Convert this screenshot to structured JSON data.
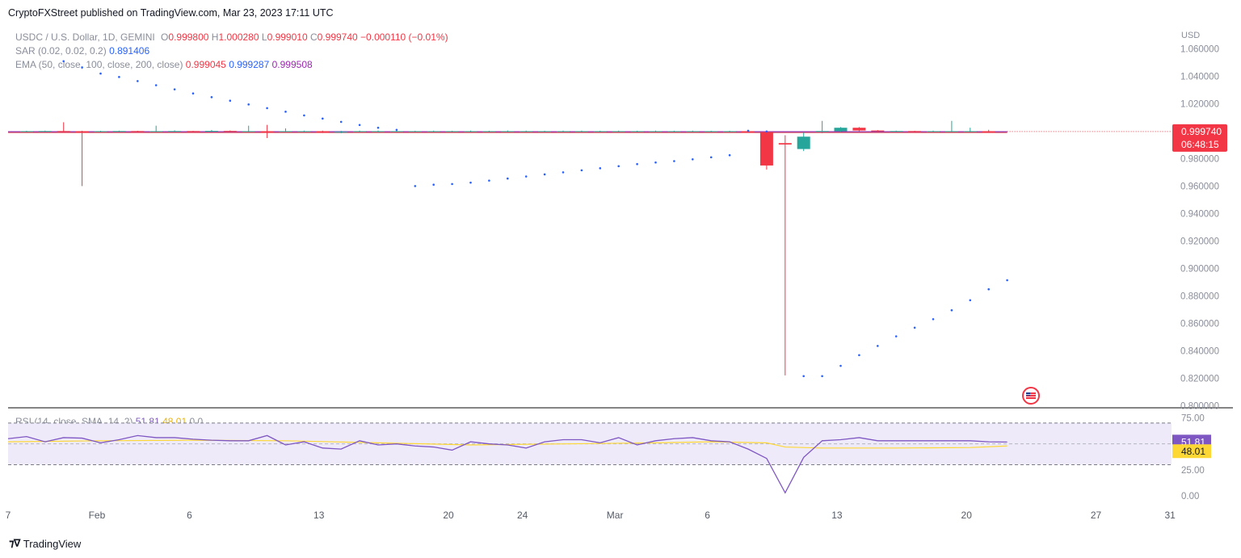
{
  "header": {
    "publish_line": "CryptoFXStreet published on TradingView.com, Mar 23, 2023 17:11 UTC"
  },
  "legend": {
    "symbol": "USDC / U.S. Dollar, 1D, GEMINI",
    "o_label": "O",
    "o_value": "0.999800",
    "h_label": "H",
    "h_value": "1.000280",
    "l_label": "L",
    "l_value": "0.999010",
    "c_label": "C",
    "c_value": "0.999740",
    "change": "−0.000110 (−0.01%)",
    "sar_label": "SAR (0.02, 0.02, 0.2)",
    "sar_value": "0.891406",
    "ema_label": "EMA (50, close, 100, close, 200, close)",
    "ema_values": [
      "0.999045",
      "0.999287",
      "0.999508"
    ],
    "rsi_label": "RSI (14, close, SMA, 14, 2)",
    "rsi_value": "51.81",
    "rsi_sma_value": "48.01",
    "rsi_extra": [
      "0",
      "0"
    ]
  },
  "colors": {
    "up": "#26a69a",
    "down": "#f23645",
    "sar": "#2962ff",
    "ema50": "#f23645",
    "ema100": "#2962ff",
    "ema200": "#9c27b0",
    "rsi": "#7e57c2",
    "rsi_sma": "#fdd835",
    "rsi_band": "#efeafa"
  },
  "icons": {
    "event": "us-flag-event-icon",
    "brand": "tradingview-logo-icon"
  },
  "brand": {
    "name": "TradingView"
  },
  "chart_data": {
    "type": "candlestick",
    "price_axis": {
      "unit": "USD",
      "ylim": [
        0.8,
        1.06
      ],
      "ticks": [
        "1.060000",
        "1.040000",
        "1.020000",
        "1.000000",
        "0.980000",
        "0.960000",
        "0.940000",
        "0.920000",
        "0.900000",
        "0.880000",
        "0.860000",
        "0.840000",
        "0.820000",
        "0.800000"
      ],
      "last_price": "0.999740",
      "countdown": "06:48:15"
    },
    "x_ticks": [
      {
        "label": "7",
        "day": 0
      },
      {
        "label": "Feb",
        "day": 4.8
      },
      {
        "label": "6",
        "day": 9.8
      },
      {
        "label": "13",
        "day": 16.8
      },
      {
        "label": "20",
        "day": 23.8
      },
      {
        "label": "24",
        "day": 27.8
      },
      {
        "label": "Mar",
        "day": 32.8
      },
      {
        "label": "6",
        "day": 37.8
      },
      {
        "label": "13",
        "day": 44.8
      },
      {
        "label": "20",
        "day": 51.8
      },
      {
        "label": "27",
        "day": 58.8
      },
      {
        "label": "31",
        "day": 62.8
      }
    ],
    "candles": [
      {
        "day": 1,
        "o": 1.0,
        "h": 1.0003,
        "l": 0.9997,
        "c": 1.0
      },
      {
        "day": 2,
        "o": 1.0,
        "h": 1.0004,
        "l": 0.9996,
        "c": 1.0001
      },
      {
        "day": 3,
        "o": 1.0001,
        "h": 1.0065,
        "l": 0.9995,
        "c": 1.0
      },
      {
        "day": 4,
        "o": 1.0,
        "h": 1.0003,
        "l": 0.96,
        "c": 0.9999
      },
      {
        "day": 5,
        "o": 0.9999,
        "h": 1.0003,
        "l": 0.9995,
        "c": 1.0
      },
      {
        "day": 6,
        "o": 1.0,
        "h": 1.0004,
        "l": 0.9996,
        "c": 1.0001
      },
      {
        "day": 7,
        "o": 1.0001,
        "h": 1.0003,
        "l": 0.9996,
        "c": 1.0
      },
      {
        "day": 8,
        "o": 1.0,
        "h": 1.004,
        "l": 0.9996,
        "c": 1.0
      },
      {
        "day": 9,
        "o": 1.0,
        "h": 1.0006,
        "l": 0.9995,
        "c": 1.0001
      },
      {
        "day": 10,
        "o": 1.0001,
        "h": 1.0003,
        "l": 0.9996,
        "c": 1.0
      },
      {
        "day": 11,
        "o": 1.0,
        "h": 1.0009,
        "l": 0.9996,
        "c": 1.0002
      },
      {
        "day": 12,
        "o": 1.0002,
        "h": 1.0005,
        "l": 0.9997,
        "c": 0.9999
      },
      {
        "day": 13,
        "o": 0.9999,
        "h": 1.004,
        "l": 0.9996,
        "c": 1.0
      },
      {
        "day": 14,
        "o": 1.0,
        "h": 1.0046,
        "l": 0.995,
        "c": 0.9999
      },
      {
        "day": 15,
        "o": 0.9999,
        "h": 1.002,
        "l": 0.9994,
        "c": 1.0
      },
      {
        "day": 16,
        "o": 1.0,
        "h": 1.0004,
        "l": 0.9996,
        "c": 1.0
      },
      {
        "day": 17,
        "o": 1.0,
        "h": 1.0004,
        "l": 0.9987,
        "c": 0.9995
      },
      {
        "day": 18,
        "o": 0.9995,
        "h": 1.0003,
        "l": 0.9985,
        "c": 0.9996
      },
      {
        "day": 19,
        "o": 0.9996,
        "h": 1.0004,
        "l": 0.9995,
        "c": 1.0
      },
      {
        "day": 20,
        "o": 1.0,
        "h": 1.0005,
        "l": 0.999,
        "c": 1.0
      },
      {
        "day": 21,
        "o": 1.0,
        "h": 1.0004,
        "l": 0.9996,
        "c": 1.0
      },
      {
        "day": 22,
        "o": 1.0,
        "h": 1.0003,
        "l": 0.9996,
        "c": 1.0
      },
      {
        "day": 23,
        "o": 1.0,
        "h": 1.0004,
        "l": 0.9996,
        "c": 1.0
      },
      {
        "day": 24,
        "o": 1.0,
        "h": 1.0003,
        "l": 0.9997,
        "c": 1.0
      },
      {
        "day": 25,
        "o": 1.0,
        "h": 1.0004,
        "l": 0.9996,
        "c": 1.0
      },
      {
        "day": 26,
        "o": 1.0,
        "h": 1.0003,
        "l": 0.9996,
        "c": 1.0
      },
      {
        "day": 27,
        "o": 1.0,
        "h": 1.0005,
        "l": 0.9995,
        "c": 1.0
      },
      {
        "day": 28,
        "o": 1.0,
        "h": 1.0004,
        "l": 0.9996,
        "c": 1.0
      },
      {
        "day": 29,
        "o": 1.0,
        "h": 1.0003,
        "l": 0.9997,
        "c": 1.0
      },
      {
        "day": 30,
        "o": 1.0,
        "h": 1.0004,
        "l": 0.9996,
        "c": 1.0
      },
      {
        "day": 31,
        "o": 1.0,
        "h": 1.0004,
        "l": 0.9996,
        "c": 1.0
      },
      {
        "day": 32,
        "o": 1.0,
        "h": 1.0003,
        "l": 0.9996,
        "c": 1.0
      },
      {
        "day": 33,
        "o": 1.0,
        "h": 1.0004,
        "l": 0.9996,
        "c": 1.0
      },
      {
        "day": 34,
        "o": 1.0,
        "h": 1.0003,
        "l": 0.9997,
        "c": 1.0
      },
      {
        "day": 35,
        "o": 1.0,
        "h": 1.0004,
        "l": 0.9996,
        "c": 1.0
      },
      {
        "day": 36,
        "o": 1.0,
        "h": 1.0003,
        "l": 0.9996,
        "c": 1.0
      },
      {
        "day": 37,
        "o": 1.0,
        "h": 1.0004,
        "l": 0.9996,
        "c": 1.0
      },
      {
        "day": 38,
        "o": 1.0,
        "h": 1.0003,
        "l": 0.9996,
        "c": 1.0
      },
      {
        "day": 39,
        "o": 1.0,
        "h": 1.0003,
        "l": 0.9997,
        "c": 1.0
      },
      {
        "day": 40,
        "o": 1.0,
        "h": 1.0004,
        "l": 0.9996,
        "c": 0.9999
      },
      {
        "day": 41,
        "o": 0.9995,
        "h": 1.0005,
        "l": 0.972,
        "c": 0.975
      },
      {
        "day": 42,
        "o": 0.9913,
        "h": 0.997,
        "l": 0.822,
        "c": 0.9903
      },
      {
        "day": 43,
        "o": 0.987,
        "h": 0.999,
        "l": 0.9855,
        "c": 0.996
      },
      {
        "day": 44,
        "o": 0.9999,
        "h": 1.0075,
        "l": 0.9985,
        "c": 1.0001
      },
      {
        "day": 45,
        "o": 1.0,
        "h": 1.003,
        "l": 0.9995,
        "c": 1.0025
      },
      {
        "day": 46,
        "o": 1.0025,
        "h": 1.003,
        "l": 0.9996,
        "c": 1.0005
      },
      {
        "day": 47,
        "o": 1.0005,
        "h": 1.0008,
        "l": 0.9996,
        "c": 1.0
      },
      {
        "day": 48,
        "o": 1.0,
        "h": 1.0004,
        "l": 0.9996,
        "c": 1.0001
      },
      {
        "day": 49,
        "o": 1.0001,
        "h": 1.0003,
        "l": 0.9996,
        "c": 1.0
      },
      {
        "day": 50,
        "o": 1.0,
        "h": 1.0004,
        "l": 0.9996,
        "c": 1.0
      },
      {
        "day": 51,
        "o": 1.0,
        "h": 1.0075,
        "l": 0.9996,
        "c": 1.0
      },
      {
        "day": 52,
        "o": 1.0,
        "h": 1.0025,
        "l": 0.9996,
        "c": 1.0
      },
      {
        "day": 53,
        "o": 1.0,
        "h": 1.001,
        "l": 0.9996,
        "c": 0.9997
      }
    ],
    "sar": [
      {
        "day": 3,
        "v": 1.051
      },
      {
        "day": 4,
        "v": 1.0465
      },
      {
        "day": 5,
        "v": 1.042
      },
      {
        "day": 6,
        "v": 1.0395
      },
      {
        "day": 7,
        "v": 1.0365
      },
      {
        "day": 8,
        "v": 1.0335
      },
      {
        "day": 9,
        "v": 1.0305
      },
      {
        "day": 10,
        "v": 1.0275
      },
      {
        "day": 11,
        "v": 1.0248
      },
      {
        "day": 12,
        "v": 1.0222
      },
      {
        "day": 13,
        "v": 1.0195
      },
      {
        "day": 14,
        "v": 1.0168
      },
      {
        "day": 15,
        "v": 1.0142
      },
      {
        "day": 16,
        "v": 1.0115
      },
      {
        "day": 17,
        "v": 1.0092
      },
      {
        "day": 18,
        "v": 1.0068
      },
      {
        "day": 19,
        "v": 1.0045
      },
      {
        "day": 20,
        "v": 1.0025
      },
      {
        "day": 21,
        "v": 1.001
      },
      {
        "day": 22,
        "v": 0.96
      },
      {
        "day": 23,
        "v": 0.961
      },
      {
        "day": 24,
        "v": 0.9615
      },
      {
        "day": 25,
        "v": 0.9625
      },
      {
        "day": 26,
        "v": 0.964
      },
      {
        "day": 27,
        "v": 0.9655
      },
      {
        "day": 28,
        "v": 0.967
      },
      {
        "day": 29,
        "v": 0.9685
      },
      {
        "day": 30,
        "v": 0.97
      },
      {
        "day": 31,
        "v": 0.9715
      },
      {
        "day": 32,
        "v": 0.973
      },
      {
        "day": 33,
        "v": 0.9745
      },
      {
        "day": 34,
        "v": 0.976
      },
      {
        "day": 35,
        "v": 0.9772
      },
      {
        "day": 36,
        "v": 0.9782
      },
      {
        "day": 37,
        "v": 0.9795
      },
      {
        "day": 38,
        "v": 0.981
      },
      {
        "day": 39,
        "v": 0.9825
      },
      {
        "day": 40,
        "v": 1.0003
      },
      {
        "day": 41,
        "v": 0.9998
      },
      {
        "day": 43,
        "v": 0.8215
      },
      {
        "day": 44,
        "v": 0.8215
      },
      {
        "day": 45,
        "v": 0.829
      },
      {
        "day": 46,
        "v": 0.8368
      },
      {
        "day": 47,
        "v": 0.8435
      },
      {
        "day": 48,
        "v": 0.8505
      },
      {
        "day": 49,
        "v": 0.8568
      },
      {
        "day": 50,
        "v": 0.863
      },
      {
        "day": 51,
        "v": 0.8695
      },
      {
        "day": 52,
        "v": 0.8768
      },
      {
        "day": 53,
        "v": 0.8848
      },
      {
        "day": 54,
        "v": 0.8914
      }
    ],
    "ema": {
      "ema50": {
        "start_day": 0,
        "end_day": 54,
        "v": 0.999045
      },
      "ema100": {
        "start_day": 0,
        "end_day": 54,
        "v": 0.999287
      },
      "ema200": {
        "start_day": 0,
        "end_day": 54,
        "v": 0.999508
      }
    },
    "rsi": {
      "ylim": [
        -3,
        80
      ],
      "ticks": [
        "75.00",
        "25.00",
        "0.00"
      ],
      "bands": [
        70,
        30
      ],
      "mid": 50,
      "current": "51.81",
      "sma_current": "48.01",
      "values": [
        {
          "day": 0,
          "v": 55
        },
        {
          "day": 1,
          "v": 57
        },
        {
          "day": 2,
          "v": 52
        },
        {
          "day": 3,
          "v": 56
        },
        {
          "day": 4,
          "v": 55.5
        },
        {
          "day": 5,
          "v": 51
        },
        {
          "day": 6,
          "v": 54
        },
        {
          "day": 7,
          "v": 58
        },
        {
          "day": 8,
          "v": 56
        },
        {
          "day": 9,
          "v": 56
        },
        {
          "day": 10,
          "v": 54.5
        },
        {
          "day": 11,
          "v": 53.5
        },
        {
          "day": 12,
          "v": 53
        },
        {
          "day": 13,
          "v": 53
        },
        {
          "day": 14,
          "v": 58
        },
        {
          "day": 15,
          "v": 49
        },
        {
          "day": 16,
          "v": 52
        },
        {
          "day": 17,
          "v": 46
        },
        {
          "day": 18,
          "v": 45
        },
        {
          "day": 19,
          "v": 53
        },
        {
          "day": 20,
          "v": 49
        },
        {
          "day": 21,
          "v": 50
        },
        {
          "day": 22,
          "v": 48
        },
        {
          "day": 23,
          "v": 47
        },
        {
          "day": 24,
          "v": 44
        },
        {
          "day": 25,
          "v": 52
        },
        {
          "day": 26,
          "v": 50
        },
        {
          "day": 27,
          "v": 49
        },
        {
          "day": 28,
          "v": 46
        },
        {
          "day": 29,
          "v": 52
        },
        {
          "day": 30,
          "v": 54
        },
        {
          "day": 31,
          "v": 54
        },
        {
          "day": 32,
          "v": 51
        },
        {
          "day": 33,
          "v": 56
        },
        {
          "day": 34,
          "v": 49
        },
        {
          "day": 35,
          "v": 53
        },
        {
          "day": 36,
          "v": 55
        },
        {
          "day": 37,
          "v": 56
        },
        {
          "day": 38,
          "v": 53
        },
        {
          "day": 39,
          "v": 52
        },
        {
          "day": 40,
          "v": 45
        },
        {
          "day": 41,
          "v": 36
        },
        {
          "day": 42,
          "v": 3
        },
        {
          "day": 43,
          "v": 37
        },
        {
          "day": 44,
          "v": 53
        },
        {
          "day": 45,
          "v": 54
        },
        {
          "day": 46,
          "v": 56
        },
        {
          "day": 47,
          "v": 53
        },
        {
          "day": 48,
          "v": 53
        },
        {
          "day": 49,
          "v": 53
        },
        {
          "day": 50,
          "v": 53
        },
        {
          "day": 51,
          "v": 53
        },
        {
          "day": 52,
          "v": 53
        },
        {
          "day": 53,
          "v": 52
        },
        {
          "day": 54,
          "v": 51.81
        }
      ],
      "sma": [
        {
          "day": 0,
          "v": 52
        },
        {
          "day": 5,
          "v": 53
        },
        {
          "day": 10,
          "v": 53.5
        },
        {
          "day": 15,
          "v": 53
        },
        {
          "day": 20,
          "v": 51
        },
        {
          "day": 25,
          "v": 49
        },
        {
          "day": 30,
          "v": 50
        },
        {
          "day": 35,
          "v": 51
        },
        {
          "day": 38,
          "v": 52
        },
        {
          "day": 41,
          "v": 51
        },
        {
          "day": 42,
          "v": 47
        },
        {
          "day": 44,
          "v": 46
        },
        {
          "day": 48,
          "v": 46
        },
        {
          "day": 52,
          "v": 46.5
        },
        {
          "day": 54,
          "v": 48.01
        }
      ]
    }
  }
}
